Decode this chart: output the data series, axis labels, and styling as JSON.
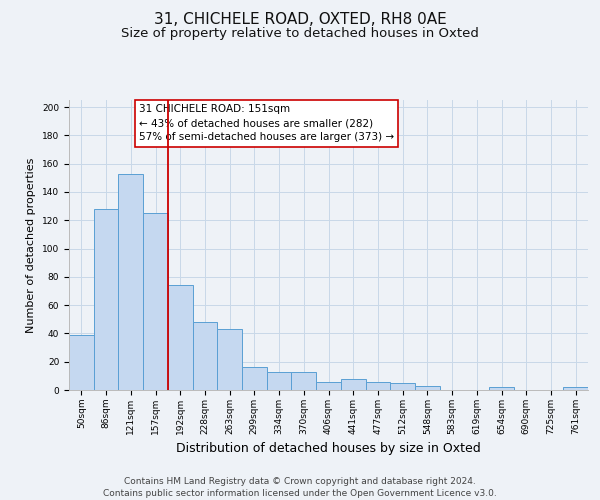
{
  "title": "31, CHICHELE ROAD, OXTED, RH8 0AE",
  "subtitle": "Size of property relative to detached houses in Oxted",
  "xlabel": "Distribution of detached houses by size in Oxted",
  "ylabel": "Number of detached properties",
  "bar_labels": [
    "50sqm",
    "86sqm",
    "121sqm",
    "157sqm",
    "192sqm",
    "228sqm",
    "263sqm",
    "299sqm",
    "334sqm",
    "370sqm",
    "406sqm",
    "441sqm",
    "477sqm",
    "512sqm",
    "548sqm",
    "583sqm",
    "619sqm",
    "654sqm",
    "690sqm",
    "725sqm",
    "761sqm"
  ],
  "bar_values": [
    39,
    128,
    153,
    125,
    74,
    48,
    43,
    16,
    13,
    13,
    6,
    8,
    6,
    5,
    3,
    0,
    0,
    2,
    0,
    0,
    2
  ],
  "bar_color": "#c5d8f0",
  "bar_edge_color": "#5a9fd4",
  "vline_index": 3,
  "vline_color": "#cc0000",
  "annotation_line1": "31 CHICHELE ROAD: 151sqm",
  "annotation_line2": "← 43% of detached houses are smaller (282)",
  "annotation_line3": "57% of semi-detached houses are larger (373) →",
  "annotation_box_facecolor": "#ffffff",
  "annotation_box_edgecolor": "#cc0000",
  "ylim": [
    0,
    205
  ],
  "yticks": [
    0,
    20,
    40,
    60,
    80,
    100,
    120,
    140,
    160,
    180,
    200
  ],
  "grid_color": "#c8d8e8",
  "background_color": "#eef2f7",
  "footer_line1": "Contains HM Land Registry data © Crown copyright and database right 2024.",
  "footer_line2": "Contains public sector information licensed under the Open Government Licence v3.0.",
  "title_fontsize": 11,
  "subtitle_fontsize": 9.5,
  "xlabel_fontsize": 9,
  "ylabel_fontsize": 8,
  "tick_fontsize": 6.5,
  "annotation_fontsize": 7.5,
  "footer_fontsize": 6.5
}
